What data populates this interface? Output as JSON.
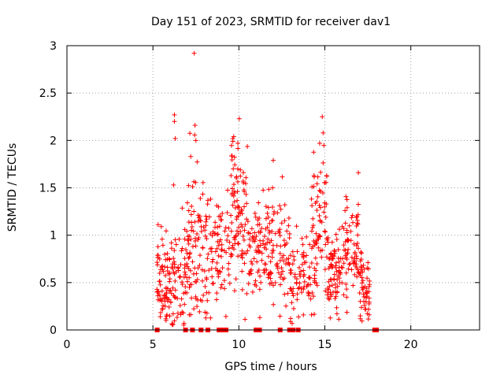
{
  "chart_data": {
    "type": "scatter",
    "title": "Day 151 of 2023, SRMTID for receiver dav1",
    "xlabel": "GPS time / hours",
    "ylabel": "SRMTID / TECUs",
    "xlim": [
      0,
      24
    ],
    "ylim": [
      0,
      3
    ],
    "xticks": [
      "0",
      "5",
      "10",
      "15",
      "20"
    ],
    "xtick_values": [
      0,
      5,
      10,
      15,
      20
    ],
    "yticks": [
      "0",
      "0.5",
      "1",
      "1.5",
      "2",
      "2.5",
      "3"
    ],
    "ytick_values": [
      0,
      0.5,
      1,
      1.5,
      2,
      2.5,
      3
    ],
    "grid": true,
    "series_color": "#ff0000",
    "marker": "plus",
    "clusters": [
      {
        "x_range": [
          5.2,
          6.2
        ],
        "y_mean": 0.5,
        "y_spread": 0.25,
        "count": 90,
        "seed": 11
      },
      {
        "x_range": [
          6.2,
          7.0
        ],
        "y_mean": 0.6,
        "y_spread": 0.3,
        "count": 55,
        "seed": 12
      },
      {
        "x_range": [
          7.0,
          7.8
        ],
        "y_mean": 0.9,
        "y_spread": 0.45,
        "count": 70,
        "seed": 13
      },
      {
        "x_range": [
          7.8,
          8.8
        ],
        "y_mean": 0.8,
        "y_spread": 0.35,
        "count": 65,
        "seed": 14
      },
      {
        "x_range": [
          8.8,
          9.5
        ],
        "y_mean": 0.8,
        "y_spread": 0.3,
        "count": 40,
        "seed": 15
      },
      {
        "x_range": [
          9.5,
          10.5
        ],
        "y_mean": 1.2,
        "y_spread": 0.4,
        "count": 95,
        "seed": 16
      },
      {
        "x_range": [
          10.5,
          11.2
        ],
        "y_mean": 0.9,
        "y_spread": 0.25,
        "count": 45,
        "seed": 17
      },
      {
        "x_range": [
          11.2,
          12.2
        ],
        "y_mean": 0.8,
        "y_spread": 0.3,
        "count": 70,
        "seed": 18
      },
      {
        "x_range": [
          12.2,
          13.0
        ],
        "y_mean": 0.85,
        "y_spread": 0.3,
        "count": 50,
        "seed": 19
      },
      {
        "x_range": [
          13.0,
          14.2
        ],
        "y_mean": 0.55,
        "y_spread": 0.2,
        "count": 70,
        "seed": 20
      },
      {
        "x_range": [
          14.2,
          15.2
        ],
        "y_mean": 1.0,
        "y_spread": 0.4,
        "count": 85,
        "seed": 21
      },
      {
        "x_range": [
          15.2,
          16.0
        ],
        "y_mean": 0.6,
        "y_spread": 0.2,
        "count": 70,
        "seed": 22
      },
      {
        "x_range": [
          16.0,
          17.0
        ],
        "y_mean": 0.85,
        "y_spread": 0.3,
        "count": 75,
        "seed": 23
      },
      {
        "x_range": [
          17.0,
          17.6
        ],
        "y_mean": 0.45,
        "y_spread": 0.18,
        "count": 55,
        "seed": 24
      }
    ],
    "outliers": [
      {
        "x": 7.4,
        "y": 2.92
      },
      {
        "x": 6.25,
        "y": 2.27
      },
      {
        "x": 6.25,
        "y": 2.2
      },
      {
        "x": 7.45,
        "y": 2.16
      },
      {
        "x": 14.85,
        "y": 2.25
      },
      {
        "x": 14.9,
        "y": 2.08
      },
      {
        "x": 9.7,
        "y": 2.04
      },
      {
        "x": 9.65,
        "y": 1.99
      },
      {
        "x": 14.7,
        "y": 1.97
      },
      {
        "x": 6.3,
        "y": 2.02
      },
      {
        "x": 7.5,
        "y": 2.0
      },
      {
        "x": 12.0,
        "y": 1.79
      },
      {
        "x": 16.95,
        "y": 1.66
      },
      {
        "x": 6.2,
        "y": 1.53
      },
      {
        "x": 7.2,
        "y": 1.83
      }
    ],
    "zero_markers_x": [
      5.25,
      6.9,
      7.3,
      7.8,
      8.2,
      8.85,
      9.0,
      9.25,
      11.0,
      11.2,
      12.4,
      12.95,
      13.15,
      13.45,
      17.9,
      18.0
    ]
  }
}
